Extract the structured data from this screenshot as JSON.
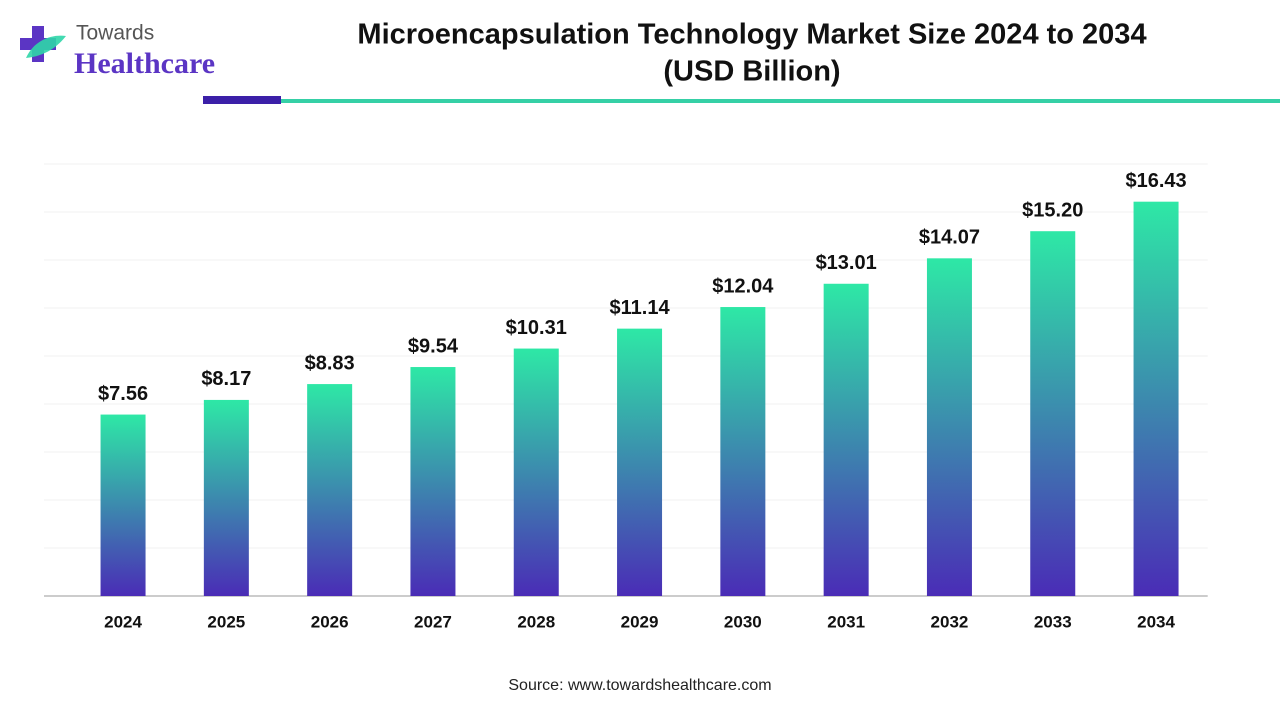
{
  "brand": {
    "line1": "Towards",
    "line2": "Healthcare"
  },
  "chart_data": {
    "type": "bar",
    "title": "Microencapsulation Technology Market Size 2024 to 2034",
    "subtitle": "(USD Billion)",
    "categories": [
      "2024",
      "2025",
      "2026",
      "2027",
      "2028",
      "2029",
      "2030",
      "2031",
      "2032",
      "2033",
      "2034"
    ],
    "values": [
      7.56,
      8.17,
      8.83,
      9.54,
      10.31,
      11.14,
      12.04,
      13.01,
      14.07,
      15.2,
      16.43
    ],
    "value_labels": [
      "$7.56",
      "$8.17",
      "$8.83",
      "$9.54",
      "$10.31",
      "$11.14",
      "$12.04",
      "$13.01",
      "$14.07",
      "$15.20",
      "$16.43"
    ],
    "gradient": [
      "#2ee8a6",
      "#4a2cb6"
    ],
    "ylim": [
      0,
      18
    ],
    "yticks": [
      0,
      2,
      4,
      6,
      8,
      10,
      12,
      14,
      16,
      18
    ],
    "grid": true
  },
  "source": "Source: www.towardshealthcare.com"
}
